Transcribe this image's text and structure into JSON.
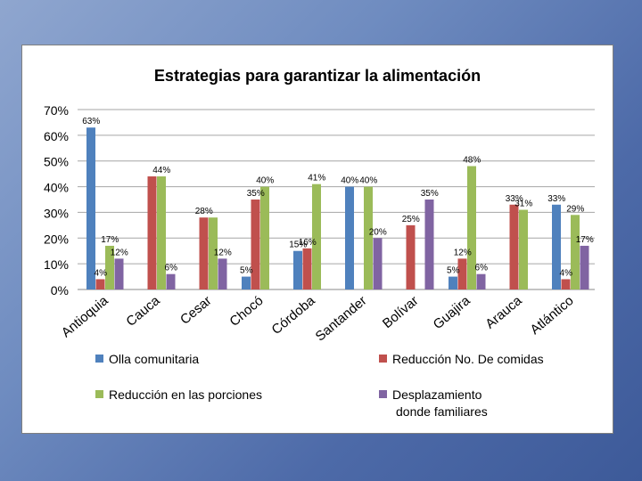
{
  "chart_data": {
    "type": "bar",
    "title": "Estrategias para garantizar la alimentación",
    "xlabel": "",
    "ylabel": "",
    "ylim": [
      0,
      70
    ],
    "yticks": [
      "0%",
      "10%",
      "20%",
      "30%",
      "40%",
      "50%",
      "60%",
      "70%"
    ],
    "categories": [
      "Antioquia",
      "Cauca",
      "Cesar",
      "Chocó",
      "Córdoba",
      "Santander",
      "Bolívar",
      "Guajira",
      "Arauca",
      "Atlántico"
    ],
    "series": [
      {
        "name": "Olla comunitaria",
        "color": "#4f81bd",
        "values": [
          63,
          null,
          null,
          5,
          15,
          40,
          null,
          5,
          null,
          33
        ],
        "labels": [
          "63%",
          "",
          "",
          "5%",
          "15%",
          "40%",
          "",
          "5%",
          "",
          "33%"
        ]
      },
      {
        "name": "Reducción No. De comidas",
        "color": "#c0504d",
        "values": [
          4,
          44,
          28,
          35,
          16,
          null,
          25,
          12,
          33,
          4
        ],
        "labels": [
          "4%",
          "",
          "28%",
          "35%",
          "16%",
          "",
          "25%",
          "12%",
          "33%",
          "4%"
        ]
      },
      {
        "name": "Reducción en las porciones",
        "color": "#9bbb59",
        "values": [
          17,
          44,
          28,
          40,
          41,
          40,
          null,
          48,
          31,
          29
        ],
        "labels": [
          "17%",
          "44%",
          "",
          "40%",
          "41%",
          "40%",
          "",
          "48%",
          "31%",
          "29%"
        ]
      },
      {
        "name": "Desplazamiento donde familiares",
        "color": "#8064a2",
        "values": [
          12,
          6,
          12,
          null,
          null,
          20,
          35,
          6,
          null,
          17
        ],
        "labels": [
          "12%",
          "6%",
          "12%",
          "",
          "",
          "20%",
          "35%",
          "6%",
          "",
          "17%"
        ]
      }
    ],
    "legend": [
      {
        "line1": "Olla comunitaria",
        "line2": "",
        "color": "#4f81bd"
      },
      {
        "line1": "Reducción No. De comidas",
        "line2": "",
        "color": "#c0504d"
      },
      {
        "line1": "Reducción en las porciones",
        "line2": "",
        "color": "#9bbb59"
      },
      {
        "line1": "Desplazamiento",
        "line2": "donde familiares",
        "color": "#8064a2"
      }
    ],
    "legend_position": "bottom",
    "grid": true
  }
}
